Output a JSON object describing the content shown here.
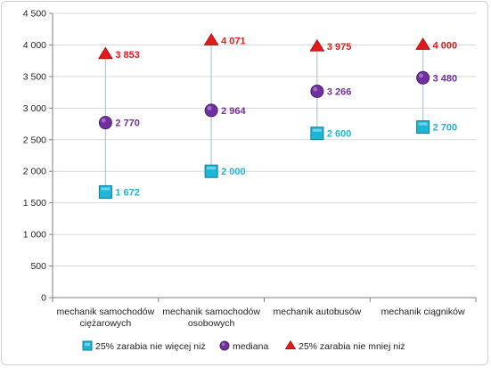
{
  "chart_data": {
    "type": "scatter",
    "categories": [
      [
        "mechanik samochodów",
        "ciężarowych"
      ],
      [
        "mechanik samochodów",
        "osobowych"
      ],
      [
        "mechanik autobusów"
      ],
      [
        "mechanik ciągników"
      ]
    ],
    "series": [
      {
        "name": "25% zarabia nie więcej niż",
        "values": [
          1672,
          2000,
          2600,
          2700
        ],
        "labels": [
          "1 672",
          "2 000",
          "2 600",
          "2 700"
        ],
        "color": "#1fb5d6",
        "marker": "square"
      },
      {
        "name": "mediana",
        "values": [
          2770,
          2964,
          3266,
          3480
        ],
        "labels": [
          "2 770",
          "2 964",
          "3 266",
          "3 480"
        ],
        "color": "#7030a0",
        "marker": "circle"
      },
      {
        "name": "25% zarabia nie mniej niż",
        "values": [
          3853,
          4071,
          3975,
          4000
        ],
        "labels": [
          "3 853",
          "4 071",
          "3 975",
          "4 000"
        ],
        "color": "#e41a1a",
        "marker": "triangle"
      }
    ],
    "ylim": [
      0,
      4500
    ],
    "yticks": [
      0,
      500,
      1000,
      1500,
      2000,
      2500,
      3000,
      3500,
      4000,
      4500
    ],
    "ytick_labels": [
      "0",
      "500",
      "1 000",
      "1 500",
      "2 000",
      "2 500",
      "3 000",
      "3 500",
      "4 000",
      "4 500"
    ],
    "grid": true,
    "range_lines": true,
    "legend_position": "bottom",
    "title": "",
    "xlabel": "",
    "ylabel": ""
  }
}
